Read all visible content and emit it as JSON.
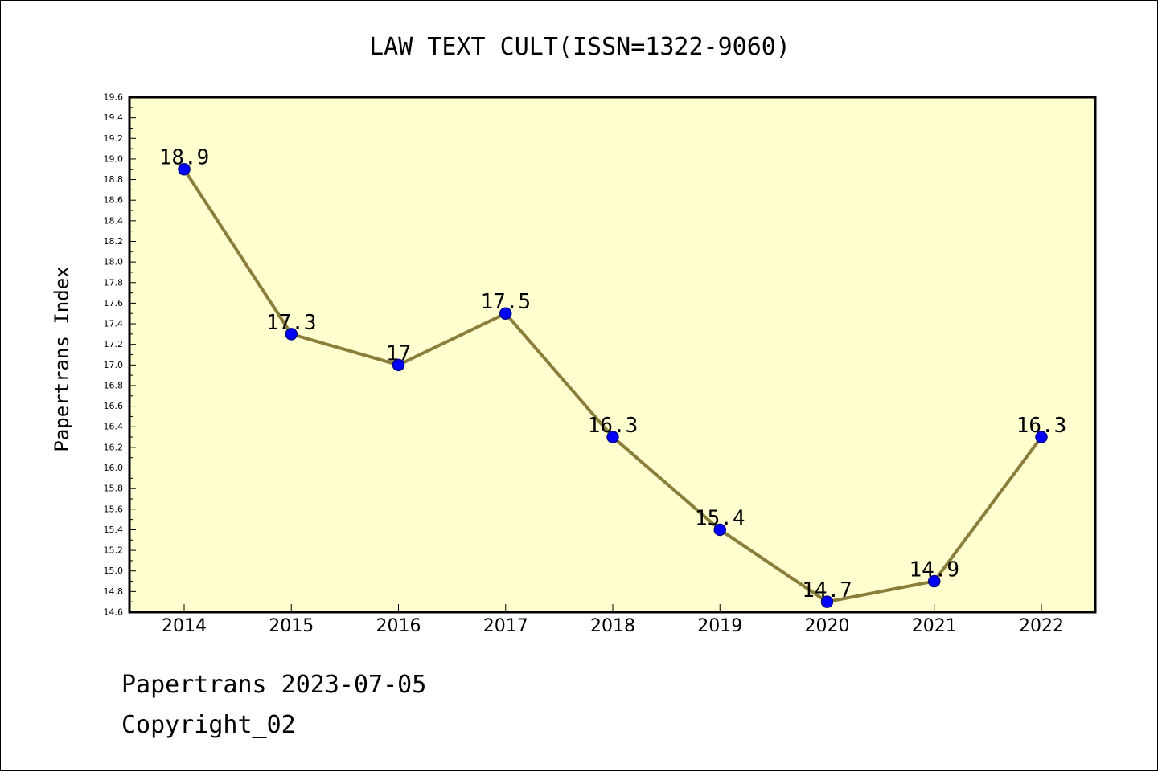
{
  "chart_data": {
    "type": "line",
    "title": "LAW TEXT CULT(ISSN=1322-9060)",
    "xlabel": "",
    "ylabel": "Papertrans Index",
    "categories": [
      "2014",
      "2015",
      "2016",
      "2017",
      "2018",
      "2019",
      "2020",
      "2021",
      "2022"
    ],
    "values": [
      18.9,
      17.3,
      17.0,
      17.5,
      16.3,
      15.4,
      14.7,
      14.9,
      16.3
    ],
    "data_labels": [
      "18.9",
      "17.3",
      "17",
      "17.5",
      "16.3",
      "15.4",
      "14.7",
      "14.9",
      "16.3"
    ],
    "ylim": [
      14.6,
      19.6
    ],
    "ytick_step": 0.2,
    "ytick_labels": [
      "14.6",
      "14.8",
      "15.0",
      "15.2",
      "15.4",
      "15.6",
      "15.8",
      "16.0",
      "16.2",
      "16.4",
      "16.6",
      "16.8",
      "17.0",
      "17.2",
      "17.4",
      "17.6",
      "17.8",
      "18.0",
      "18.2",
      "18.4",
      "18.6",
      "18.8",
      "19.0",
      "19.2",
      "19.4",
      "19.6"
    ],
    "grid": false,
    "legend": "none",
    "colors": {
      "plot_background": "#ffffd0",
      "line": "#8b7d3a",
      "marker": "#0000ff",
      "marker_edge": "#00008b",
      "axis": "#000000"
    }
  },
  "footer": {
    "line1": "Papertrans 2023-07-05",
    "line2": "Copyright_02"
  }
}
